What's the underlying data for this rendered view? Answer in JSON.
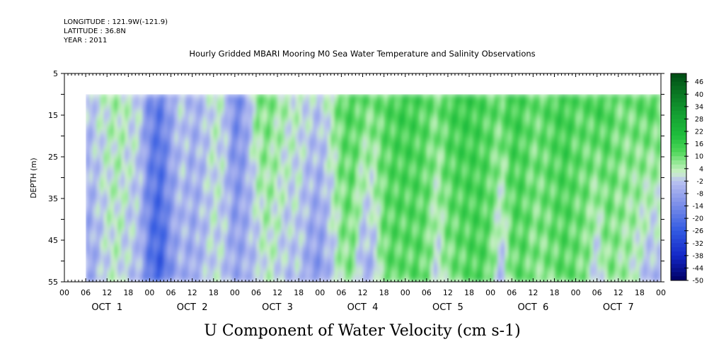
{
  "header": {
    "longitude": "LONGITUDE : 121.9W(-121.9)",
    "latitude": "LATITUDE : 36.8N",
    "year": "YEAR : 2011",
    "title": "Hourly Gridded MBARI Mooring M0 Sea Water Temperature and Salinity Observations"
  },
  "chart_data": {
    "type": "heatmap",
    "title": "Hourly Gridded MBARI Mooring M0 Sea Water Temperature and Salinity Observations",
    "xlabel": "U Component of Water Velocity (cm s-1)",
    "ylabel": "DEPTH (m)",
    "x_range_hours": [
      0,
      168
    ],
    "y_range": [
      55,
      5
    ],
    "y_ticks": [
      5,
      15,
      25,
      35,
      45,
      55
    ],
    "data_extent": {
      "hour_start": 6,
      "hour_end": 168,
      "depth_top": 10,
      "depth_bottom": 55
    },
    "hour_tick_labels": [
      "00",
      "06",
      "12",
      "18",
      "00",
      "06",
      "12",
      "18",
      "00",
      "06",
      "12",
      "18",
      "00",
      "06",
      "12",
      "18",
      "00",
      "06",
      "12",
      "18",
      "00",
      "06",
      "12",
      "18",
      "00",
      "06",
      "12",
      "18",
      "00"
    ],
    "day_labels": [
      "OCT  1",
      "OCT  2",
      "OCT  3",
      "OCT  4",
      "OCT  5",
      "OCT  6",
      "OCT  7"
    ],
    "colorbar": {
      "tick_labels": [
        "46",
        "40",
        "34",
        "28",
        "22",
        "16",
        "10",
        "4",
        "-2",
        "-8",
        "-14",
        "-20",
        "-26",
        "-32",
        "-38",
        "-44",
        "-50"
      ],
      "min": -50,
      "max": 50,
      "step": 3
    },
    "u_profile_by_hour": {
      "hours": [
        6,
        9,
        12,
        15,
        18,
        21,
        24,
        27,
        30,
        33,
        36,
        39,
        42,
        45,
        48,
        51,
        54,
        57,
        60,
        63,
        66,
        69,
        72,
        75,
        78,
        81,
        84,
        87,
        90,
        93,
        96,
        99,
        102,
        105,
        108,
        111,
        114,
        117,
        120,
        123,
        126,
        129,
        132,
        135,
        138,
        141,
        144,
        147,
        150,
        153,
        156,
        159,
        162,
        165,
        168
      ],
      "upper_u": [
        -4,
        0,
        3,
        5,
        2,
        0,
        -14,
        -18,
        -8,
        0,
        -6,
        -4,
        2,
        0,
        -16,
        -10,
        8,
        10,
        6,
        4,
        2,
        0,
        -2,
        4,
        12,
        14,
        12,
        10,
        12,
        14,
        16,
        14,
        12,
        10,
        14,
        16,
        16,
        14,
        12,
        12,
        16,
        14,
        10,
        12,
        14,
        16,
        12,
        12,
        16,
        14,
        10,
        10,
        12,
        14,
        12
      ],
      "lower_u": [
        -10,
        -6,
        0,
        2,
        -2,
        -4,
        -20,
        -26,
        -12,
        -6,
        -8,
        -4,
        0,
        -2,
        -8,
        -6,
        -4,
        2,
        0,
        -4,
        -2,
        -10,
        -12,
        -4,
        6,
        8,
        -8,
        -6,
        10,
        12,
        10,
        12,
        10,
        -2,
        8,
        10,
        12,
        14,
        10,
        -6,
        10,
        12,
        8,
        8,
        10,
        12,
        10,
        8,
        -4,
        8,
        6,
        4,
        0,
        -6,
        -4
      ]
    }
  }
}
